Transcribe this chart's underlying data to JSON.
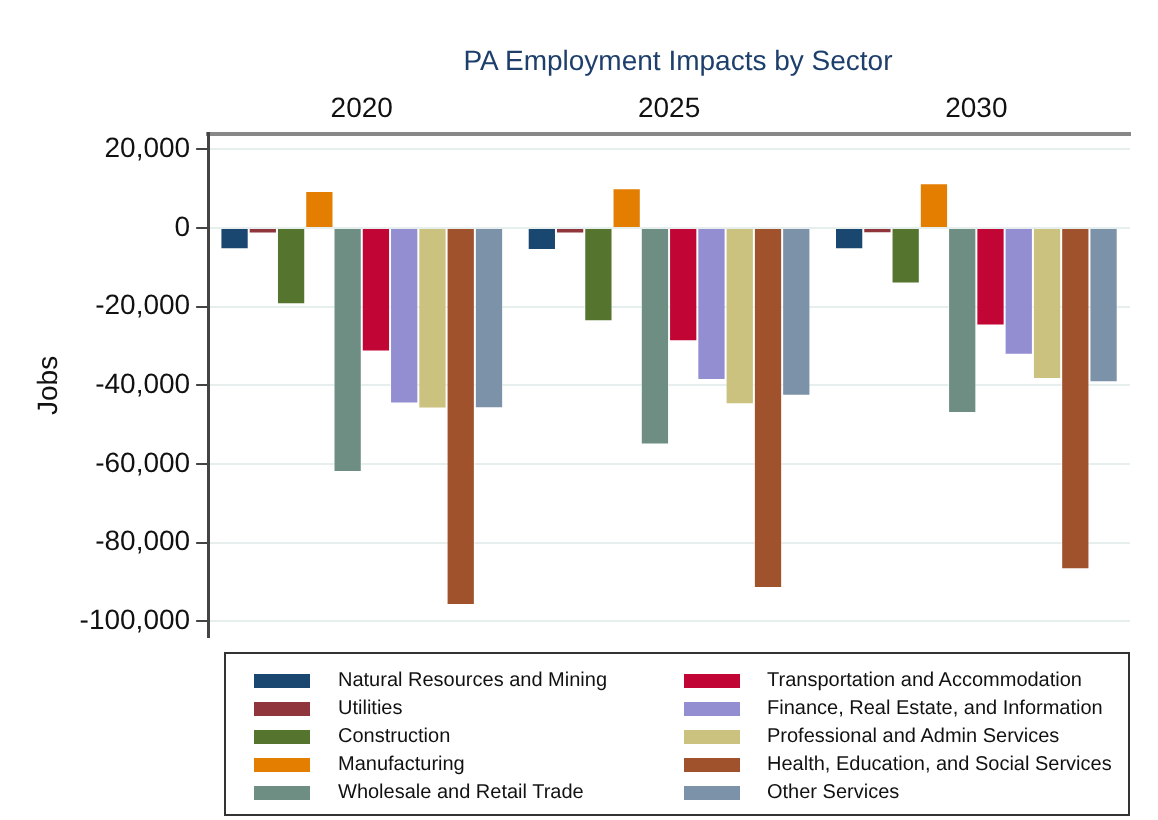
{
  "chart_data": {
    "type": "bar",
    "title": "PA Employment Impacts by Sector",
    "ylabel": "Jobs",
    "categories": [
      "2020",
      "2025",
      "2030"
    ],
    "series": [
      {
        "name": "Natural Resources and Mining",
        "color": "#1a476f",
        "values": [
          -5400,
          -5600,
          -5400
        ]
      },
      {
        "name": "Utilities",
        "color": "#90353b",
        "values": [
          -1400,
          -1400,
          -1300
        ]
      },
      {
        "name": "Construction",
        "color": "#55752f",
        "values": [
          -19400,
          -23700,
          -14100
        ]
      },
      {
        "name": "Manufacturing",
        "color": "#e37e00",
        "values": [
          9400,
          10100,
          11400
        ]
      },
      {
        "name": "Wholesale and Retail Trade",
        "color": "#6e8e84",
        "values": [
          -62000,
          -55000,
          -47000
        ]
      },
      {
        "name": "Transportation and Accommodation",
        "color": "#c10534",
        "values": [
          -31400,
          -28800,
          -24800
        ]
      },
      {
        "name": "Finance, Real Estate, and Information",
        "color": "#938dd2",
        "values": [
          -44600,
          -38600,
          -32200
        ]
      },
      {
        "name": "Professional and Admin Services",
        "color": "#cac27e",
        "values": [
          -45900,
          -44800,
          -38400
        ]
      },
      {
        "name": "Health, Education, and Social Services",
        "color": "#a0522d",
        "values": [
          -95800,
          -91500,
          -86700
        ]
      },
      {
        "name": "Other Services",
        "color": "#7b92a8",
        "values": [
          -45800,
          -42600,
          -39200
        ]
      }
    ],
    "ylim": [
      -104000,
      24000
    ],
    "yticks": [
      {
        "value": 20000,
        "label": "20,000"
      },
      0,
      {
        "value": -20000,
        "label": "-20,000"
      },
      {
        "value": -40000,
        "label": "-40,000"
      },
      {
        "value": -60000,
        "label": "-60,000"
      },
      {
        "value": -80000,
        "label": "-80,000"
      },
      {
        "value": -100000,
        "label": "-100,000"
      }
    ],
    "grid": "y",
    "legend": "bottom"
  }
}
